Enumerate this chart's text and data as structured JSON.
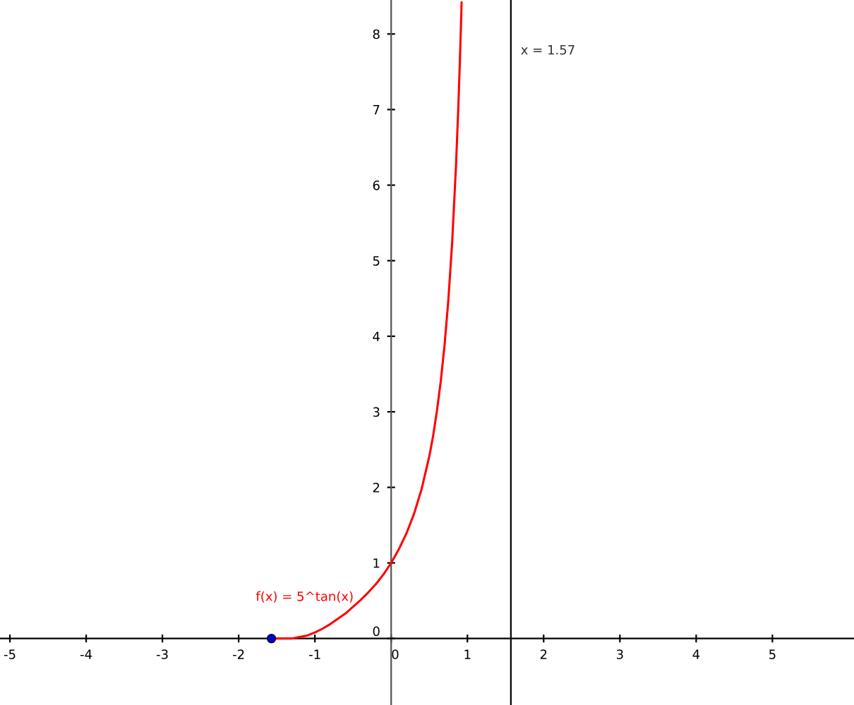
{
  "chart_data": {
    "type": "line",
    "xlim": [
      -5.13,
      6.07
    ],
    "ylim": [
      -0.88,
      8.45
    ],
    "xticks": [
      -5,
      -4,
      -3,
      -2,
      -1,
      0,
      1,
      2,
      3,
      4,
      5
    ],
    "yticks": [
      0,
      1,
      2,
      3,
      4,
      5,
      6,
      7,
      8
    ],
    "grid": false,
    "series": [
      {
        "name": "f(x) = 5^tan(x)",
        "color": "#ff0000",
        "marker": "none",
        "x": [
          -1.57,
          -1.5,
          -1.4,
          -1.3,
          -1.2,
          -1.1,
          -1.0,
          -0.9,
          -0.8,
          -0.7,
          -0.6,
          -0.5,
          -0.4,
          -0.3,
          -0.2,
          -0.1,
          0.0,
          0.1,
          0.2,
          0.3,
          0.4,
          0.5,
          0.55,
          0.6,
          0.65,
          0.7,
          0.75,
          0.8,
          0.85,
          0.88,
          0.9,
          0.92,
          0.924
        ],
        "values": [
          0.0,
          0.0,
          0.0,
          0.0,
          0.02,
          0.04,
          0.08,
          0.13,
          0.19,
          0.26,
          0.33,
          0.42,
          0.51,
          0.61,
          0.72,
          0.85,
          1.0,
          1.18,
          1.39,
          1.65,
          1.98,
          2.41,
          2.68,
          3.01,
          3.4,
          3.88,
          4.48,
          5.24,
          6.25,
          7.01,
          7.6,
          8.27,
          8.42
        ]
      },
      {
        "type": "scatter",
        "color": "#0000cc",
        "marker": "circle",
        "x": [
          -1.57
        ],
        "values": [
          0.0
        ]
      }
    ],
    "ref_lines": [
      {
        "axis": "x",
        "value": 1.57,
        "label": "x = 1.57",
        "color": "#000000",
        "line_style": "solid"
      }
    ]
  }
}
